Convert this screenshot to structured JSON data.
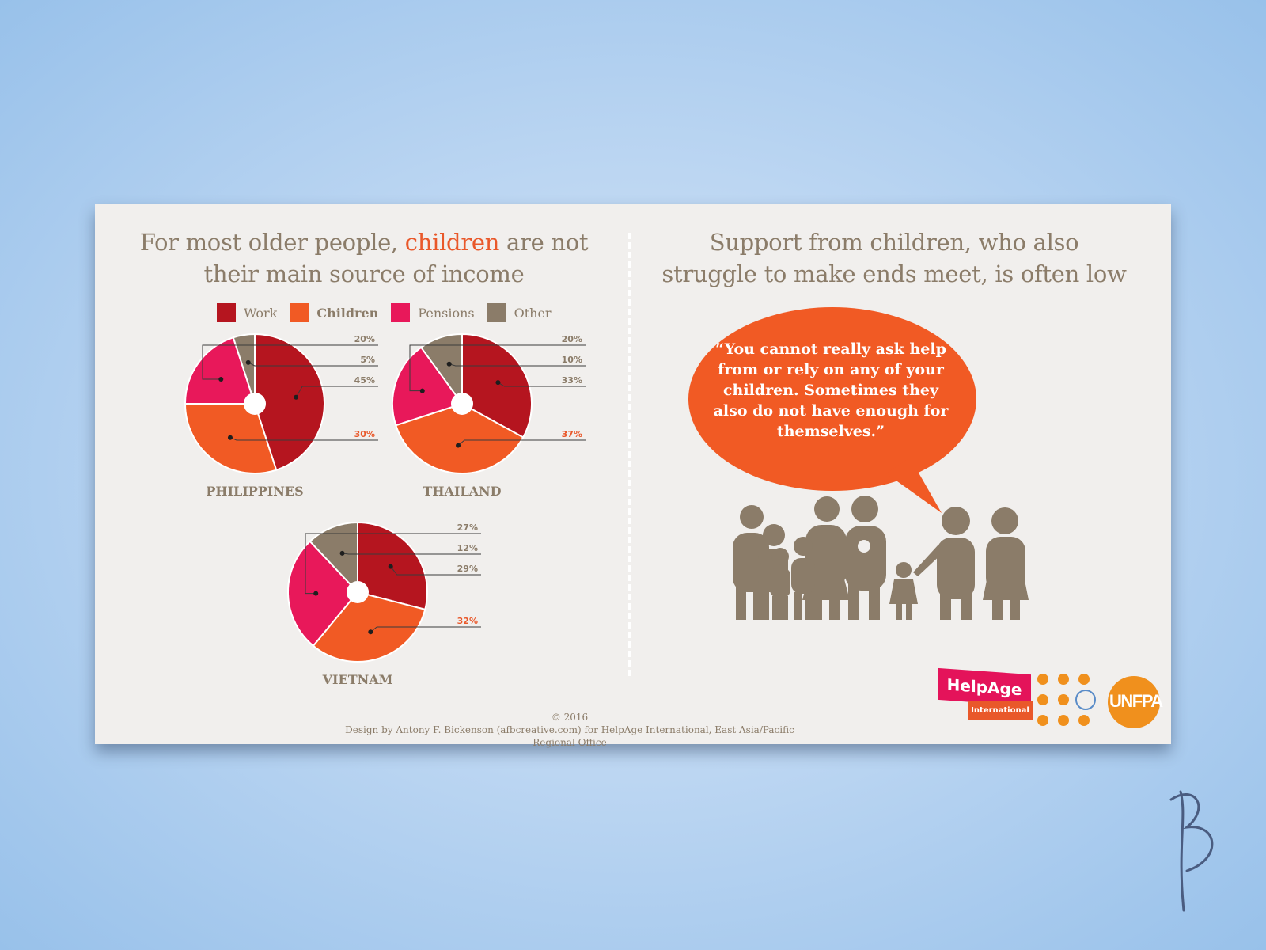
{
  "left_heading": {
    "before": "For most older people,",
    "accent": "children",
    "after": "are not",
    "line2": "their main source of income"
  },
  "right_heading": {
    "line1": "Support from children, who also",
    "line2": "struggle to make ends meet, is often low"
  },
  "legend": [
    {
      "label": "Work",
      "color": "#b5151f"
    },
    {
      "label": "Children",
      "color": "#f15a24"
    },
    {
      "label": "Pensions",
      "color": "#e8185a"
    },
    {
      "label": "Other",
      "color": "#8b7c69"
    }
  ],
  "chart_data": [
    {
      "type": "pie",
      "title": "PHILIPPINES",
      "categories": [
        "Work",
        "Children",
        "Pensions",
        "Other"
      ],
      "values": [
        45,
        30,
        20,
        5
      ],
      "labels": [
        "45%",
        "30%",
        "20%",
        "5%"
      ]
    },
    {
      "type": "pie",
      "title": "THAILAND",
      "categories": [
        "Work",
        "Children",
        "Pensions",
        "Other"
      ],
      "values": [
        33,
        37,
        20,
        10
      ],
      "labels": [
        "33%",
        "37%",
        "20%",
        "10%"
      ]
    },
    {
      "type": "pie",
      "title": "VIETNAM",
      "categories": [
        "Work",
        "Children",
        "Pensions",
        "Other"
      ],
      "values": [
        29,
        32,
        27,
        12
      ],
      "labels": [
        "29%",
        "32%",
        "27%",
        "12%"
      ]
    }
  ],
  "quote": "“You cannot really ask help from or rely on any of your children. Sometimes they also do not have enough for themselves.”",
  "footer": {
    "copyright": "© 2016",
    "credit": "Design by Antony F. Bickenson (afbcreative.com) for HelpAge International, East Asia/Pacific Regional Office"
  },
  "logos": {
    "helpage": "HelpAge",
    "helpage_sub": "International",
    "unfpa": "UNFPA"
  },
  "colors": {
    "card": "#f1efed",
    "text": "#8b7c69",
    "accent": "#e9582a",
    "people": "#8b7c69",
    "bubble": "#f15a24"
  }
}
